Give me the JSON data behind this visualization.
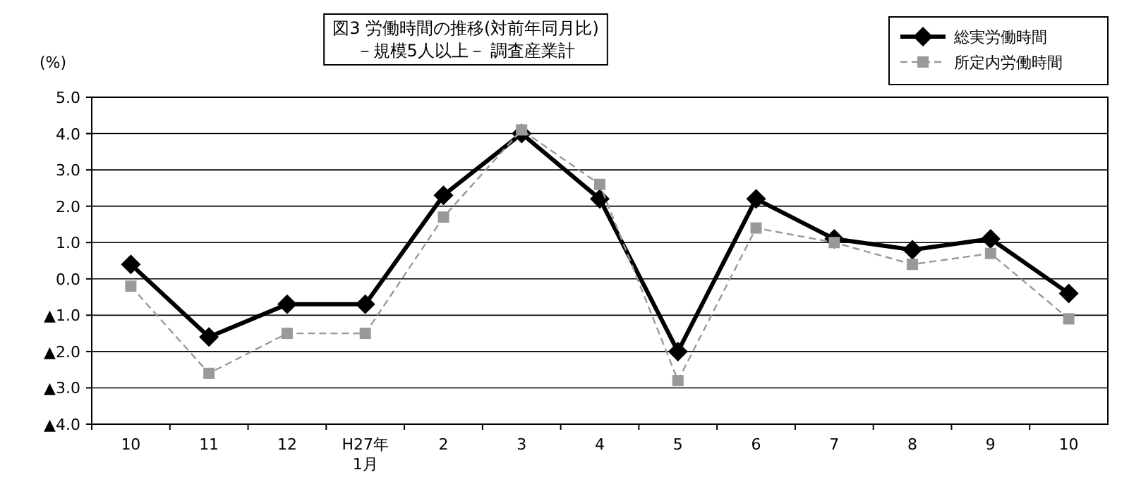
{
  "chart_data": {
    "type": "line",
    "title": "図3 労働時間の推移(対前年同月比)",
    "subtitle": "－規模5人以上－ 調査産業計",
    "ylabel": "(%)",
    "categories": [
      "10",
      "11",
      "12",
      "H27年\n1月",
      "2",
      "3",
      "4",
      "5",
      "6",
      "7",
      "8",
      "9",
      "10"
    ],
    "series": [
      {
        "name": "総実労働時間",
        "color": "#000000",
        "marker": "diamond",
        "line_style": "solid",
        "values": [
          0.4,
          -1.6,
          -0.7,
          -0.7,
          2.3,
          4.0,
          2.2,
          -2.0,
          2.2,
          1.1,
          0.8,
          1.1,
          -0.4
        ]
      },
      {
        "name": "所定内労働時間",
        "color": "#999999",
        "marker": "square",
        "line_style": "dashed",
        "values": [
          -0.2,
          -2.6,
          -1.5,
          -1.5,
          1.7,
          4.1,
          2.6,
          -2.8,
          1.4,
          1.0,
          0.4,
          0.7,
          -1.1
        ]
      }
    ],
    "ylim": [
      -4,
      5
    ],
    "yticks": [
      {
        "value": 5,
        "label": "5.0"
      },
      {
        "value": 4,
        "label": "4.0"
      },
      {
        "value": 3,
        "label": "3.0"
      },
      {
        "value": 2,
        "label": "2.0"
      },
      {
        "value": 1,
        "label": "1.0"
      },
      {
        "value": 0,
        "label": "0.0"
      },
      {
        "value": -1,
        "label": "▲1.0"
      },
      {
        "value": -2,
        "label": "▲2.0"
      },
      {
        "value": -3,
        "label": "▲3.0"
      },
      {
        "value": -4,
        "label": "▲4.0"
      }
    ],
    "grid": "y",
    "legend": "top right"
  }
}
